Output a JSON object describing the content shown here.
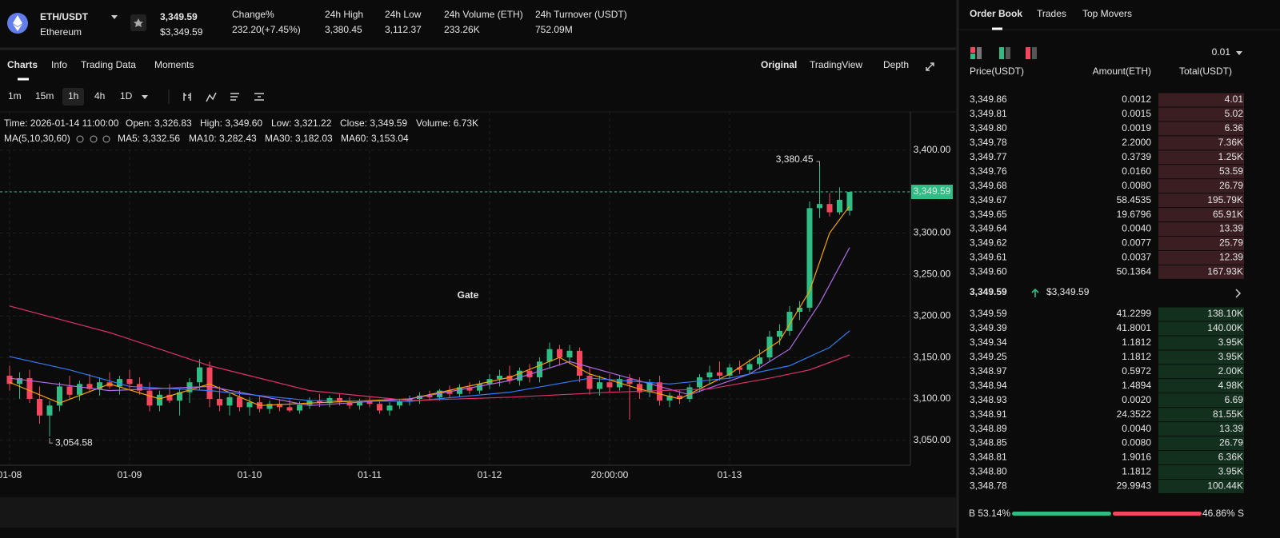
{
  "header": {
    "pair": "ETH/USDT",
    "name": "Ethereum",
    "price": "3,349.59",
    "price_usd": "$3,349.59",
    "stats": [
      {
        "label": "Change%",
        "value": "232.20(+7.45%)"
      },
      {
        "label": "24h High",
        "value": "3,380.45"
      },
      {
        "label": "24h Low",
        "value": "3,112.37"
      },
      {
        "label": "24h Volume (ETH)",
        "value": "233.26K"
      },
      {
        "label": "24h Turnover (USDT)",
        "value": "752.09M"
      }
    ]
  },
  "tabs": [
    "Charts",
    "Info",
    "Trading Data",
    "Moments"
  ],
  "views": [
    "Original",
    "TradingView",
    "Depth"
  ],
  "intervals": [
    "1m",
    "15m",
    "1h",
    "4h",
    "1D"
  ],
  "chart_data": {
    "type": "candlestick",
    "watermark": "Gate",
    "info": [
      "Time: 2026-01-14 11:00:00",
      "Open: 3,326.83",
      "High: 3,349.60",
      "Low: 3,321.22",
      "Close: 3,349.59",
      "Volume: 6.73K"
    ],
    "ma_title": "MA(5,10,30,60)",
    "ylim": [
      3020,
      3446
    ],
    "yticks": [
      {
        "value": 3050,
        "label": "3,050.00"
      },
      {
        "value": 3100,
        "label": "3,100.00"
      },
      {
        "value": 3150,
        "label": "3,150.00"
      },
      {
        "value": 3200,
        "label": "3,200.00"
      },
      {
        "value": 3250,
        "label": "3,250.00"
      },
      {
        "value": 3300,
        "label": "3,300.00"
      },
      {
        "value": 3350,
        "label": "3,350.00"
      },
      {
        "value": 3400,
        "label": "3,400.00"
      }
    ],
    "xticks": [
      {
        "value": 0,
        "label": "01-08"
      },
      {
        "value": 12,
        "label": "01-09"
      },
      {
        "value": 24,
        "label": "01-10"
      },
      {
        "value": 36,
        "label": "01-11"
      },
      {
        "value": 48,
        "label": "01-12"
      },
      {
        "value": 60,
        "label": "20:00:00"
      },
      {
        "value": 72,
        "label": "01-13"
      }
    ],
    "grid": true,
    "up_color": "#2ebd85",
    "down_color": "#f6465d",
    "last_price": {
      "value": 3349.59,
      "label": "3,349.59"
    },
    "high_label": "3,380.45",
    "low_label": "3,054.58",
    "ohlc": [
      [
        3128,
        3140,
        3110,
        3118
      ],
      [
        3118,
        3132,
        3100,
        3125
      ],
      [
        3125,
        3135,
        3095,
        3100
      ],
      [
        3100,
        3115,
        3070,
        3080
      ],
      [
        3080,
        3098,
        3054.58,
        3092
      ],
      [
        3092,
        3120,
        3085,
        3115
      ],
      [
        3115,
        3128,
        3100,
        3105
      ],
      [
        3105,
        3122,
        3098,
        3118
      ],
      [
        3118,
        3130,
        3108,
        3112
      ],
      [
        3112,
        3126,
        3104,
        3120
      ],
      [
        3120,
        3132,
        3112,
        3115
      ],
      [
        3115,
        3128,
        3105,
        3124
      ],
      [
        3124,
        3135,
        3110,
        3118
      ],
      [
        3118,
        3126,
        3105,
        3110
      ],
      [
        3110,
        3120,
        3085,
        3092
      ],
      [
        3092,
        3110,
        3085,
        3105
      ],
      [
        3105,
        3118,
        3095,
        3098
      ],
      [
        3098,
        3112,
        3080,
        3108
      ],
      [
        3108,
        3125,
        3095,
        3120
      ],
      [
        3120,
        3148,
        3110,
        3138
      ],
      [
        3138,
        3145,
        3090,
        3100
      ],
      [
        3100,
        3115,
        3085,
        3092
      ],
      [
        3092,
        3108,
        3080,
        3102
      ],
      [
        3102,
        3110,
        3085,
        3090
      ],
      [
        3090,
        3102,
        3080,
        3096
      ],
      [
        3096,
        3104,
        3084,
        3088
      ],
      [
        3088,
        3098,
        3082,
        3094
      ],
      [
        3094,
        3100,
        3085,
        3090
      ],
      [
        3090,
        3099,
        3084,
        3086
      ],
      [
        3086,
        3097,
        3082,
        3093
      ],
      [
        3093,
        3102,
        3088,
        3098
      ],
      [
        3098,
        3106,
        3090,
        3095
      ],
      [
        3095,
        3104,
        3090,
        3101
      ],
      [
        3101,
        3106,
        3092,
        3096
      ],
      [
        3096,
        3102,
        3088,
        3092
      ],
      [
        3092,
        3100,
        3087,
        3097
      ],
      [
        3097,
        3103,
        3090,
        3094
      ],
      [
        3094,
        3099,
        3082,
        3086
      ],
      [
        3086,
        3096,
        3080,
        3092
      ],
      [
        3092,
        3100,
        3088,
        3097
      ],
      [
        3097,
        3104,
        3092,
        3100
      ],
      [
        3100,
        3108,
        3094,
        3104
      ],
      [
        3104,
        3110,
        3098,
        3102
      ],
      [
        3102,
        3112,
        3098,
        3110
      ],
      [
        3110,
        3116,
        3102,
        3106
      ],
      [
        3106,
        3118,
        3102,
        3114
      ],
      [
        3114,
        3120,
        3106,
        3110
      ],
      [
        3110,
        3122,
        3106,
        3118
      ],
      [
        3118,
        3130,
        3112,
        3124
      ],
      [
        3124,
        3135,
        3115,
        3128
      ],
      [
        3128,
        3140,
        3118,
        3122
      ],
      [
        3122,
        3138,
        3116,
        3134
      ],
      [
        3134,
        3142,
        3120,
        3126
      ],
      [
        3126,
        3150,
        3120,
        3145
      ],
      [
        3145,
        3168,
        3138,
        3160
      ],
      [
        3160,
        3165,
        3140,
        3150
      ],
      [
        3150,
        3165,
        3142,
        3158
      ],
      [
        3158,
        3162,
        3120,
        3128
      ],
      [
        3128,
        3138,
        3105,
        3112
      ],
      [
        3112,
        3128,
        3104,
        3120
      ],
      [
        3120,
        3130,
        3108,
        3114
      ],
      [
        3114,
        3128,
        3110,
        3124
      ],
      [
        3124,
        3130,
        3075,
        3118
      ],
      [
        3118,
        3126,
        3100,
        3108
      ],
      [
        3108,
        3124,
        3102,
        3120
      ],
      [
        3120,
        3128,
        3092,
        3098
      ],
      [
        3098,
        3108,
        3090,
        3104
      ],
      [
        3104,
        3110,
        3094,
        3100
      ],
      [
        3100,
        3118,
        3096,
        3114
      ],
      [
        3114,
        3130,
        3108,
        3126
      ],
      [
        3126,
        3140,
        3118,
        3132
      ],
      [
        3132,
        3145,
        3122,
        3128
      ],
      [
        3128,
        3142,
        3124,
        3138
      ],
      [
        3138,
        3146,
        3130,
        3135
      ],
      [
        3135,
        3148,
        3130,
        3142
      ],
      [
        3142,
        3160,
        3136,
        3150
      ],
      [
        3150,
        3182,
        3145,
        3175
      ],
      [
        3175,
        3190,
        3165,
        3182
      ],
      [
        3182,
        3212,
        3176,
        3205
      ],
      [
        3205,
        3218,
        3195,
        3210
      ],
      [
        3210,
        3338,
        3205,
        3330
      ],
      [
        3330,
        3380.45,
        3318,
        3335
      ],
      [
        3335,
        3348,
        3320,
        3325
      ],
      [
        3325,
        3355,
        3322,
        3340
      ],
      [
        3326.83,
        3349.6,
        3321.22,
        3349.59
      ]
    ],
    "series": [
      {
        "name": "MA5: 3,332.56",
        "color": "#f7a600",
        "x": [
          0,
          5,
          10,
          15,
          20,
          25,
          30,
          40,
          50,
          55,
          58,
          63,
          67,
          72,
          77,
          80,
          82,
          84
        ],
        "values": [
          3120,
          3095,
          3118,
          3100,
          3118,
          3092,
          3095,
          3100,
          3126,
          3150,
          3130,
          3112,
          3100,
          3130,
          3170,
          3230,
          3300,
          3332.56
        ]
      },
      {
        "name": "MA10: 3,282.43",
        "color": "#b36be8",
        "x": [
          0,
          10,
          20,
          30,
          40,
          50,
          56,
          62,
          68,
          74,
          78,
          81,
          84
        ],
        "values": [
          3125,
          3110,
          3115,
          3092,
          3100,
          3122,
          3145,
          3125,
          3105,
          3130,
          3160,
          3215,
          3282.43
        ]
      },
      {
        "name": "MA30: 3,182.03",
        "color": "#2f7df6",
        "x": [
          0,
          6,
          12,
          20,
          30,
          40,
          50,
          58,
          66,
          72,
          78,
          82,
          84
        ],
        "values": [
          3151,
          3135,
          3115,
          3110,
          3098,
          3097,
          3108,
          3125,
          3118,
          3125,
          3140,
          3162,
          3182.03
        ]
      },
      {
        "name": "MA60: 3,153.04",
        "color": "#e0306e",
        "x": [
          0,
          10,
          20,
          30,
          40,
          50,
          60,
          70,
          76,
          80,
          84
        ],
        "values": [
          3212,
          3180,
          3140,
          3110,
          3098,
          3102,
          3108,
          3112,
          3125,
          3135,
          3153.04
        ]
      }
    ]
  },
  "order_book": {
    "tabs": [
      "Order Book",
      "Trades",
      "Top Movers"
    ],
    "precision": "0.01",
    "columns": [
      "Price(USDT)",
      "Amount(ETH)",
      "Total(USDT)"
    ],
    "asks": [
      [
        "3,349.86",
        "0.0012",
        "4.01"
      ],
      [
        "3,349.81",
        "0.0015",
        "5.02"
      ],
      [
        "3,349.80",
        "0.0019",
        "6.36"
      ],
      [
        "3,349.78",
        "2.2000",
        "7.36K"
      ],
      [
        "3,349.77",
        "0.3739",
        "1.25K"
      ],
      [
        "3,349.76",
        "0.0160",
        "53.59"
      ],
      [
        "3,349.68",
        "0.0080",
        "26.79"
      ],
      [
        "3,349.67",
        "58.4535",
        "195.79K"
      ],
      [
        "3,349.65",
        "19.6796",
        "65.91K"
      ],
      [
        "3,349.64",
        "0.0040",
        "13.39"
      ],
      [
        "3,349.62",
        "0.0077",
        "25.79"
      ],
      [
        "3,349.61",
        "0.0037",
        "12.39"
      ],
      [
        "3,349.60",
        "50.1364",
        "167.93K"
      ]
    ],
    "mid_price": "3,349.59",
    "mid_usd": "$3,349.59",
    "bids": [
      [
        "3,349.59",
        "41.2299",
        "138.10K"
      ],
      [
        "3,349.39",
        "41.8001",
        "140.00K"
      ],
      [
        "3,349.34",
        "1.1812",
        "3.95K"
      ],
      [
        "3,349.25",
        "1.1812",
        "3.95K"
      ],
      [
        "3,348.97",
        "0.5972",
        "2.00K"
      ],
      [
        "3,348.94",
        "1.4894",
        "4.98K"
      ],
      [
        "3,348.93",
        "0.0020",
        "6.69"
      ],
      [
        "3,348.91",
        "24.3522",
        "81.55K"
      ],
      [
        "3,348.89",
        "0.0040",
        "13.39"
      ],
      [
        "3,348.85",
        "0.0080",
        "26.79"
      ],
      [
        "3,348.81",
        "1.9016",
        "6.36K"
      ],
      [
        "3,348.80",
        "1.1812",
        "3.95K"
      ],
      [
        "3,348.78",
        "29.9943",
        "100.44K"
      ]
    ],
    "buy": {
      "value": 53.14,
      "label": "B 53.14%"
    },
    "sell": {
      "value": 46.86,
      "label": "46.86% S"
    }
  }
}
